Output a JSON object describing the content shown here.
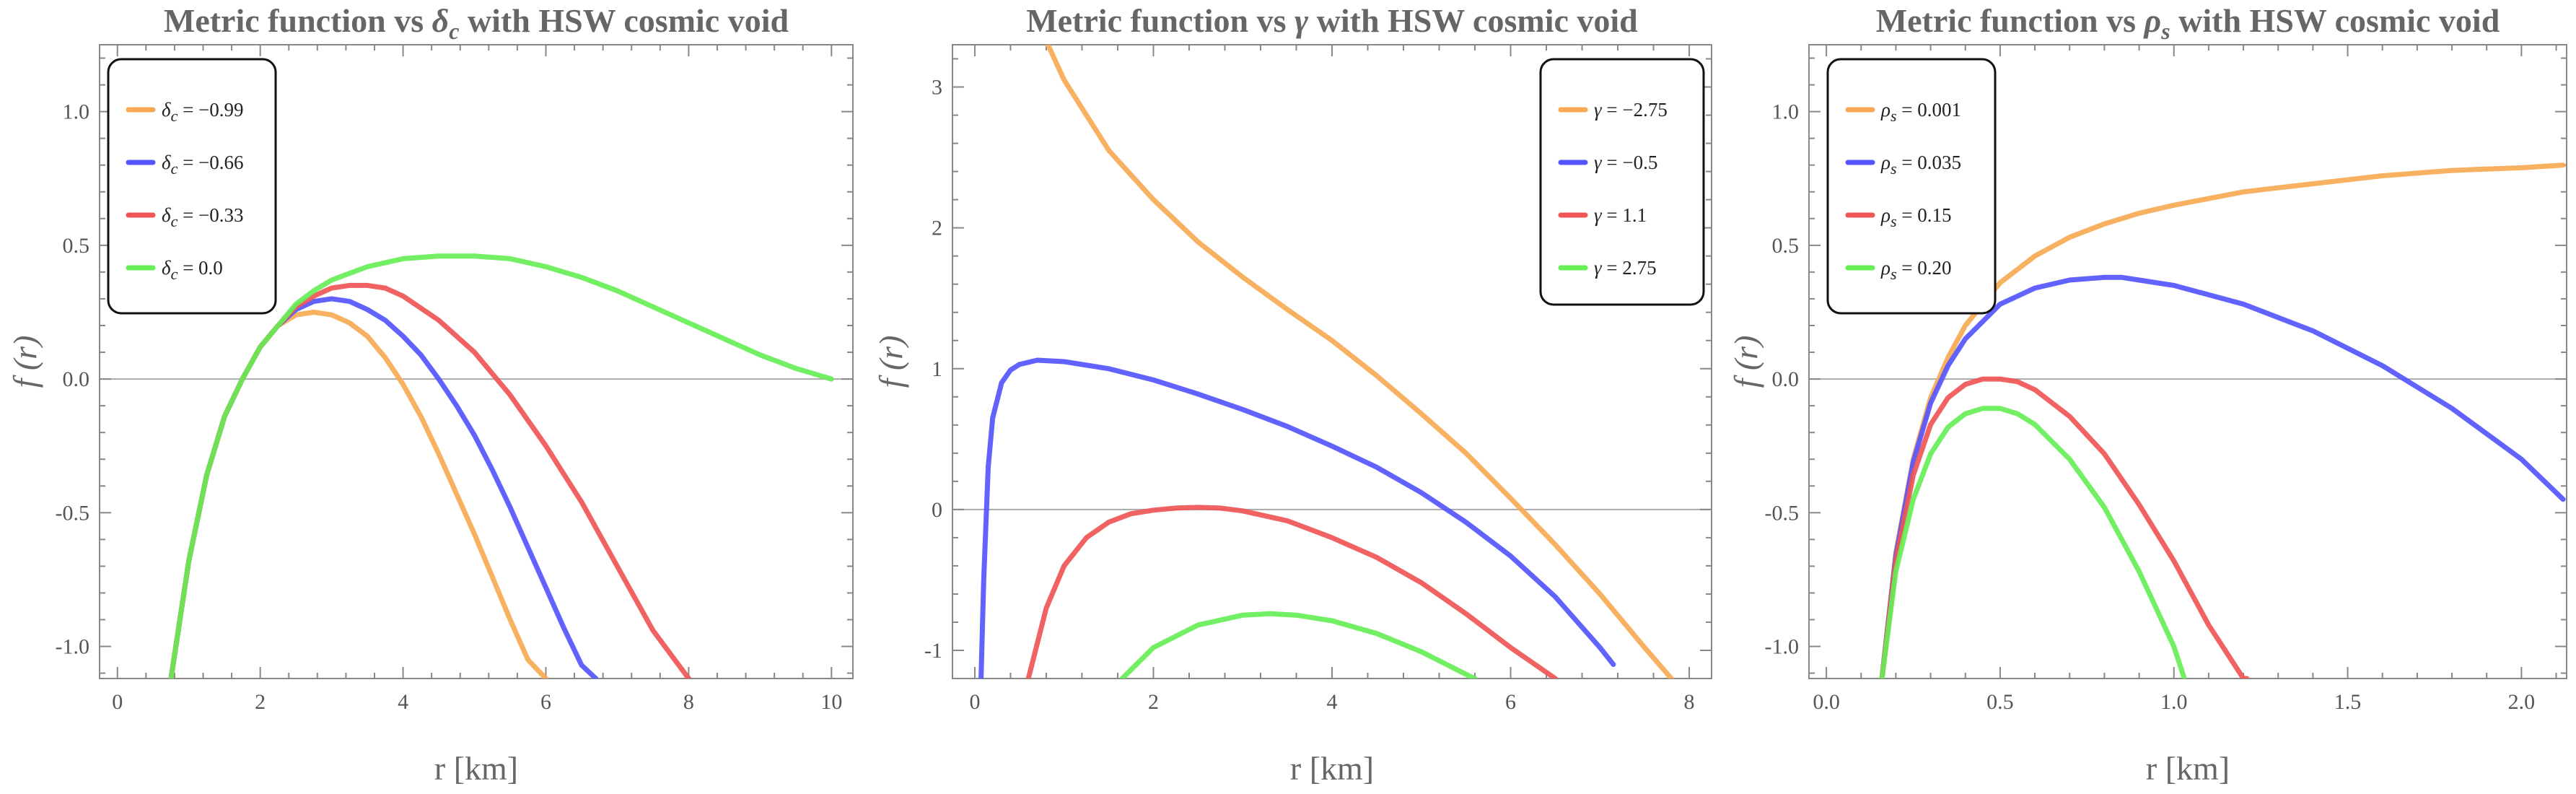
{
  "chart_data": [
    {
      "type": "line",
      "title": "Metric function vs δc with HSW cosmic void",
      "title_parts": {
        "prefix": "Metric function vs ",
        "symbol": "δ",
        "sub": "c",
        "suffix": " with HSW cosmic void"
      },
      "xlabel": "r [km]",
      "ylabel": "f (r)",
      "xlim": [
        -0.25,
        10.3
      ],
      "ylim": [
        -1.12,
        1.25
      ],
      "xticks": [
        0,
        2,
        4,
        6,
        8,
        10
      ],
      "xtick_labels": [
        "0",
        "2",
        "4",
        "6",
        "8",
        "10"
      ],
      "yticks": [
        -1.0,
        -0.5,
        0.0,
        0.5,
        1.0
      ],
      "ytick_labels": [
        "-1.0",
        "-0.5",
        "0.0",
        "0.5",
        "1.0"
      ],
      "grid": false,
      "legend_position": "top-left",
      "series": [
        {
          "name": "δc = −0.99",
          "label_symbol": "δ",
          "label_sub": "c",
          "label_value": " = −0.99",
          "color": "#f7a954",
          "x": [
            0.75,
            1.0,
            1.25,
            1.5,
            1.75,
            2.0,
            2.25,
            2.5,
            2.75,
            3.0,
            3.25,
            3.5,
            3.75,
            4.0,
            4.25,
            4.5,
            4.75,
            5.0,
            5.25,
            5.5,
            5.75,
            6.0
          ],
          "y": [
            -1.12,
            -0.68,
            -0.36,
            -0.14,
            0.0,
            0.12,
            0.2,
            0.24,
            0.25,
            0.24,
            0.21,
            0.16,
            0.08,
            -0.02,
            -0.14,
            -0.28,
            -0.43,
            -0.58,
            -0.74,
            -0.9,
            -1.05,
            -1.12
          ]
        },
        {
          "name": "δc = −0.66",
          "label_symbol": "δ",
          "label_sub": "c",
          "label_value": " = −0.66",
          "color": "#5555ff",
          "x": [
            0.75,
            1.0,
            1.25,
            1.5,
            1.75,
            2.0,
            2.25,
            2.5,
            2.75,
            3.0,
            3.25,
            3.5,
            3.75,
            4.0,
            4.25,
            4.5,
            4.75,
            5.0,
            5.25,
            5.5,
            5.75,
            6.0,
            6.25,
            6.5,
            6.7
          ],
          "y": [
            -1.12,
            -0.68,
            -0.36,
            -0.14,
            0.0,
            0.12,
            0.2,
            0.26,
            0.29,
            0.3,
            0.29,
            0.26,
            0.22,
            0.16,
            0.09,
            0.0,
            -0.1,
            -0.21,
            -0.34,
            -0.48,
            -0.63,
            -0.78,
            -0.93,
            -1.07,
            -1.12
          ]
        },
        {
          "name": "δc = −0.33",
          "label_symbol": "δ",
          "label_sub": "c",
          "label_value": " = −0.33",
          "color": "#f05555",
          "x": [
            0.75,
            1.0,
            1.25,
            1.5,
            1.75,
            2.0,
            2.25,
            2.5,
            2.75,
            3.0,
            3.25,
            3.5,
            3.75,
            4.0,
            4.5,
            5.0,
            5.5,
            6.0,
            6.5,
            7.0,
            7.5,
            8.0
          ],
          "y": [
            -1.12,
            -0.68,
            -0.36,
            -0.14,
            0.0,
            0.12,
            0.2,
            0.27,
            0.31,
            0.34,
            0.35,
            0.35,
            0.34,
            0.31,
            0.22,
            0.1,
            -0.06,
            -0.25,
            -0.46,
            -0.7,
            -0.94,
            -1.12
          ]
        },
        {
          "name": "δc = 0.0",
          "label_symbol": "δ",
          "label_sub": "c",
          "label_value": " = 0.0",
          "color": "#66ee55",
          "x": [
            0.75,
            1.0,
            1.25,
            1.5,
            1.75,
            2.0,
            2.25,
            2.5,
            2.75,
            3.0,
            3.5,
            4.0,
            4.5,
            5.0,
            5.5,
            6.0,
            6.5,
            7.0,
            7.5,
            8.0,
            8.5,
            9.0,
            9.5,
            10.0
          ],
          "y": [
            -1.12,
            -0.68,
            -0.36,
            -0.14,
            0.0,
            0.12,
            0.2,
            0.28,
            0.33,
            0.37,
            0.42,
            0.45,
            0.46,
            0.46,
            0.45,
            0.42,
            0.38,
            0.33,
            0.27,
            0.21,
            0.15,
            0.09,
            0.04,
            0.0
          ]
        }
      ]
    },
    {
      "type": "line",
      "title": "Metric function vs γ with HSW cosmic void",
      "title_parts": {
        "prefix": "Metric function vs ",
        "symbol": "γ",
        "sub": "",
        "suffix": " with HSW cosmic void"
      },
      "xlabel": "r [km]",
      "ylabel": "f (r)",
      "xlim": [
        -0.25,
        8.25
      ],
      "ylim": [
        -1.2,
        3.3
      ],
      "xticks": [
        0,
        2,
        4,
        6,
        8
      ],
      "xtick_labels": [
        "0",
        "2",
        "4",
        "6",
        "8"
      ],
      "yticks": [
        -1,
        0,
        1,
        2,
        3
      ],
      "ytick_labels": [
        "-1",
        "0",
        "1",
        "2",
        "3"
      ],
      "grid": false,
      "legend_position": "top-right",
      "series": [
        {
          "name": "γ = −2.75",
          "label_symbol": "γ",
          "label_sub": "",
          "label_value": " = −2.75",
          "color": "#f7a954",
          "x": [
            0.82,
            1.0,
            1.5,
            2.0,
            2.5,
            3.0,
            3.5,
            4.0,
            4.5,
            5.0,
            5.5,
            6.0,
            6.5,
            7.0,
            7.5,
            7.8
          ],
          "y": [
            3.3,
            3.05,
            2.55,
            2.2,
            1.9,
            1.65,
            1.42,
            1.2,
            0.95,
            0.68,
            0.4,
            0.08,
            -0.25,
            -0.6,
            -0.98,
            -1.2
          ]
        },
        {
          "name": "γ = −0.5",
          "label_symbol": "γ",
          "label_sub": "",
          "label_value": " = −0.5",
          "color": "#5555ff",
          "x": [
            0.07,
            0.1,
            0.15,
            0.2,
            0.3,
            0.4,
            0.5,
            0.7,
            1.0,
            1.5,
            2.0,
            2.5,
            3.0,
            3.5,
            4.0,
            4.5,
            5.0,
            5.5,
            6.0,
            6.5,
            7.0,
            7.15
          ],
          "y": [
            -1.2,
            -0.5,
            0.3,
            0.65,
            0.9,
            0.99,
            1.03,
            1.06,
            1.05,
            1.0,
            0.92,
            0.82,
            0.71,
            0.59,
            0.45,
            0.3,
            0.12,
            -0.09,
            -0.33,
            -0.62,
            -0.98,
            -1.1
          ]
        },
        {
          "name": "γ = 1.1",
          "label_symbol": "γ",
          "label_sub": "",
          "label_value": " = 1.1",
          "color": "#f05555",
          "x": [
            0.6,
            0.8,
            1.0,
            1.25,
            1.5,
            1.75,
            2.0,
            2.25,
            2.5,
            2.75,
            3.0,
            3.5,
            4.0,
            4.5,
            5.0,
            5.5,
            6.0,
            6.5
          ],
          "y": [
            -1.2,
            -0.7,
            -0.4,
            -0.2,
            -0.09,
            -0.03,
            -0.005,
            0.01,
            0.015,
            0.01,
            -0.01,
            -0.08,
            -0.2,
            -0.34,
            -0.52,
            -0.74,
            -0.98,
            -1.2
          ]
        },
        {
          "name": "γ = 2.75",
          "label_symbol": "γ",
          "label_sub": "",
          "label_value": " = 2.75",
          "color": "#66ee55",
          "x": [
            1.65,
            2.0,
            2.5,
            3.0,
            3.3,
            3.6,
            4.0,
            4.5,
            5.0,
            5.5,
            5.6
          ],
          "y": [
            -1.2,
            -0.98,
            -0.82,
            -0.75,
            -0.74,
            -0.75,
            -0.79,
            -0.88,
            -1.01,
            -1.17,
            -1.2
          ]
        }
      ]
    },
    {
      "type": "line",
      "title": "Metric function vs ρs with HSW cosmic void",
      "title_parts": {
        "prefix": "Metric function vs ",
        "symbol": "ρ",
        "sub": "s",
        "suffix": " with HSW cosmic void"
      },
      "xlabel": "r [km]",
      "ylabel": "f (r)",
      "xlim": [
        -0.05,
        2.13
      ],
      "ylim": [
        -1.12,
        1.25
      ],
      "xticks": [
        0.0,
        0.5,
        1.0,
        1.5,
        2.0
      ],
      "xtick_labels": [
        "0.0",
        "0.5",
        "1.0",
        "1.5",
        "2.0"
      ],
      "yticks": [
        -1.0,
        -0.5,
        0.0,
        0.5,
        1.0
      ],
      "ytick_labels": [
        "-1.0",
        "-0.5",
        "0.0",
        "0.5",
        "1.0"
      ],
      "grid": false,
      "legend_position": "top-left",
      "series": [
        {
          "name": "ρs = 0.001",
          "label_symbol": "ρ",
          "label_sub": "s",
          "label_value": " = 0.001",
          "color": "#f7a954",
          "x": [
            0.16,
            0.2,
            0.25,
            0.3,
            0.35,
            0.4,
            0.5,
            0.6,
            0.7,
            0.8,
            0.9,
            1.0,
            1.2,
            1.4,
            1.6,
            1.8,
            2.0,
            2.12
          ],
          "y": [
            -1.12,
            -0.65,
            -0.3,
            -0.07,
            0.08,
            0.2,
            0.36,
            0.46,
            0.53,
            0.58,
            0.62,
            0.65,
            0.7,
            0.73,
            0.76,
            0.78,
            0.79,
            0.8
          ]
        },
        {
          "name": "ρs = 0.035",
          "label_symbol": "ρ",
          "label_sub": "s",
          "label_value": " = 0.035",
          "color": "#5555ff",
          "x": [
            0.16,
            0.2,
            0.25,
            0.3,
            0.35,
            0.4,
            0.5,
            0.6,
            0.7,
            0.8,
            0.85,
            0.9,
            1.0,
            1.2,
            1.4,
            1.6,
            1.8,
            2.0,
            2.12
          ],
          "y": [
            -1.12,
            -0.66,
            -0.31,
            -0.09,
            0.05,
            0.15,
            0.28,
            0.34,
            0.37,
            0.38,
            0.38,
            0.37,
            0.35,
            0.28,
            0.18,
            0.05,
            -0.11,
            -0.3,
            -0.45
          ]
        },
        {
          "name": "ρs = 0.15",
          "label_symbol": "ρ",
          "label_sub": "s",
          "label_value": " = 0.15",
          "color": "#f05555",
          "x": [
            0.16,
            0.2,
            0.25,
            0.3,
            0.35,
            0.4,
            0.45,
            0.5,
            0.55,
            0.6,
            0.7,
            0.8,
            0.9,
            1.0,
            1.1,
            1.2,
            1.21
          ],
          "y": [
            -1.12,
            -0.68,
            -0.36,
            -0.17,
            -0.07,
            -0.02,
            0.0,
            0.0,
            -0.01,
            -0.04,
            -0.14,
            -0.28,
            -0.47,
            -0.68,
            -0.92,
            -1.12,
            -1.12
          ]
        },
        {
          "name": "ρs = 0.20",
          "label_symbol": "ρ",
          "label_sub": "s",
          "label_value": " = 0.20",
          "color": "#66ee55",
          "x": [
            0.16,
            0.2,
            0.25,
            0.3,
            0.35,
            0.4,
            0.45,
            0.5,
            0.55,
            0.6,
            0.7,
            0.8,
            0.9,
            1.0,
            1.03
          ],
          "y": [
            -1.12,
            -0.72,
            -0.45,
            -0.28,
            -0.18,
            -0.13,
            -0.11,
            -0.11,
            -0.13,
            -0.17,
            -0.3,
            -0.48,
            -0.72,
            -1.0,
            -1.12
          ]
        }
      ]
    }
  ]
}
